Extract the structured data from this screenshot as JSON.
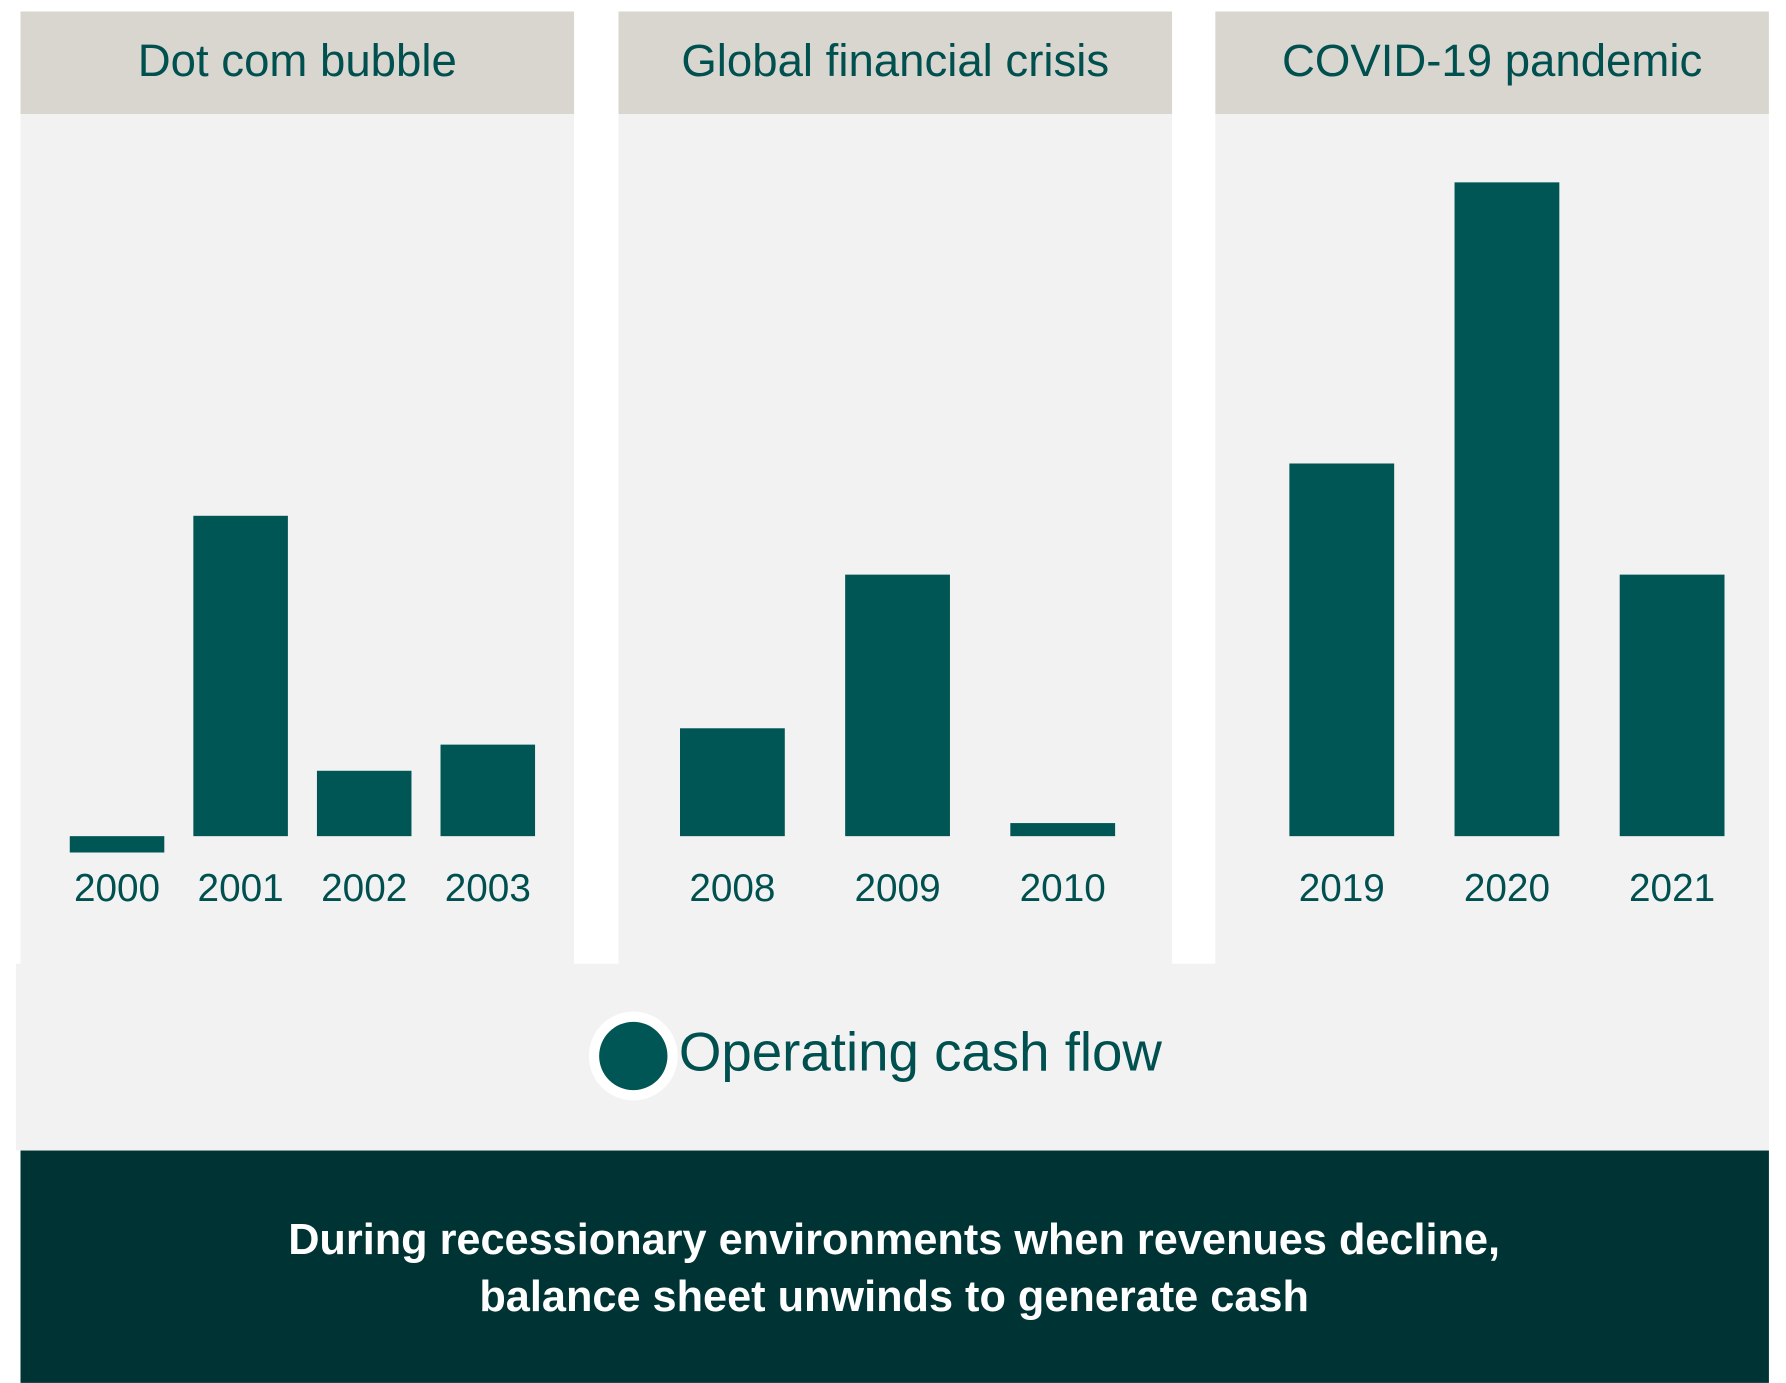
{
  "chart_data": [
    {
      "type": "bar",
      "title": "Dot com bubble",
      "categories": [
        "2000",
        "2001",
        "2002",
        "2003"
      ],
      "values": [
        -2.5,
        49,
        10,
        14
      ],
      "color": "#005555",
      "ylim": [
        -5,
        105
      ]
    },
    {
      "type": "bar",
      "title": "Global financial crisis",
      "categories": [
        "2008",
        "2009",
        "2010"
      ],
      "values": [
        16.5,
        40,
        2
      ],
      "color": "#005555",
      "ylim": [
        -5,
        105
      ]
    },
    {
      "type": "bar",
      "title": "COVID-19 pandemic",
      "categories": [
        "2019",
        "2020",
        "2021"
      ],
      "values": [
        57,
        100,
        40
      ],
      "color": "#005555",
      "ylim": [
        -5,
        105
      ]
    }
  ],
  "legend": {
    "label": "Operating cash flow",
    "color": "#005555"
  },
  "footer": [
    "During recessionary environments when revenues decline,",
    "balance sheet unwinds to generate cash"
  ]
}
